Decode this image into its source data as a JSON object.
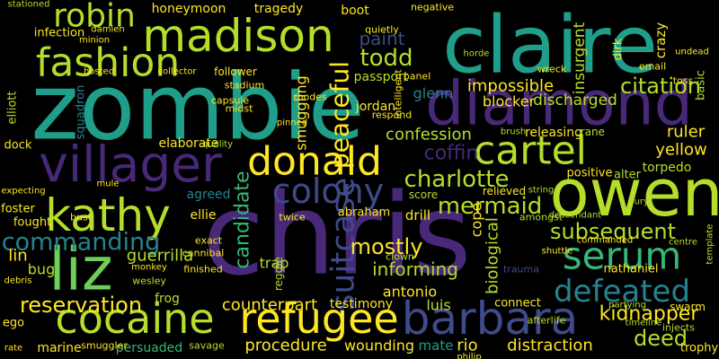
{
  "words": [
    "chris",
    "zombie",
    "claire",
    "diamond",
    "owen",
    "villager",
    "madison",
    "fashion",
    "robin",
    "kathy",
    "liz",
    "cocaine",
    "refugee",
    "barbara",
    "donald",
    "colony",
    "cartel",
    "serum",
    "defeated",
    "charlotte",
    "mermaid",
    "subsequent",
    "commanding",
    "reservation",
    "suitcase",
    "peaceful",
    "candidate",
    "biological",
    "cope",
    "mostly",
    "informing",
    "kidnapper",
    "deed",
    "citation",
    "impossible",
    "ruler",
    "yellow",
    "torpedo",
    "todd",
    "paint",
    "jordan",
    "glenn",
    "passport",
    "blocker",
    "discharged",
    "confession",
    "coffin",
    "smuggling",
    "ellie",
    "agreed",
    "elaborate",
    "guerrilla",
    "bug",
    "lin",
    "counterpart",
    "frog",
    "procedure",
    "wounding",
    "rio",
    "distraction",
    "trophy",
    "marine",
    "persuaded",
    "antonio",
    "luis",
    "testimony",
    "mate",
    "connect",
    "afterlife",
    "releasing",
    "positive",
    "alter",
    "nathaniel",
    "insurgent",
    "crazy",
    "dirk",
    "basic",
    "tragedy",
    "boot",
    "honeymoon",
    "negative",
    "infection",
    "elliott",
    "squadron",
    "foster",
    "fought",
    "dock",
    "expecting",
    "debris",
    "ego",
    "rate",
    "smuggler",
    "savage",
    "drill",
    "abraham",
    "score",
    "relieved",
    "crane",
    "email",
    "toss",
    "undead",
    "centre",
    "swarm",
    "template",
    "injects",
    "stationed",
    "follower",
    "stadium",
    "capsule",
    "rhodes",
    "midst",
    "pinned",
    "quality",
    "twice",
    "clown",
    "reggie",
    "exact",
    "cannibal",
    "finished",
    "wesley",
    "monkey",
    "trauma",
    "amongst",
    "commanded",
    "mule",
    "bust",
    "brush",
    "fury",
    "string",
    "descendant",
    "shuttle",
    "partying",
    "timeline",
    "wreck",
    "quietly",
    "respond",
    "panel",
    "intelligent",
    "horde",
    "hosted",
    "minion",
    "damien",
    "collector",
    "trap",
    "philip"
  ]
}
